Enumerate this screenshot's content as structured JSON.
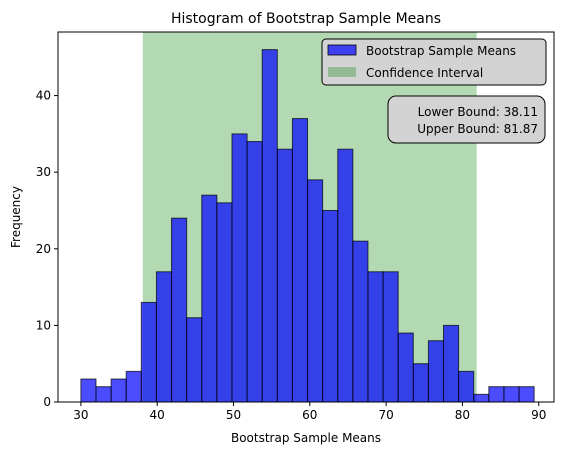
{
  "chart_data": {
    "type": "bar",
    "title": "Histogram of Bootstrap Sample Means",
    "xlabel": "Bootstrap Sample Means",
    "ylabel": "Frequency",
    "xlim": [
      27.0,
      92.0
    ],
    "ylim": [
      0,
      48.3
    ],
    "xticks": [
      30,
      40,
      50,
      60,
      70,
      80,
      90
    ],
    "yticks": [
      0,
      10,
      20,
      30,
      40
    ],
    "bin_start": 30.0,
    "bin_width": 1.98,
    "series": [
      {
        "name": "Bootstrap Sample Means",
        "color": "#0000ff",
        "values": [
          3,
          2,
          3,
          4,
          13,
          17,
          24,
          11,
          27,
          26,
          35,
          34,
          46,
          33,
          37,
          29,
          25,
          33,
          21,
          17,
          17,
          9,
          5,
          8,
          10,
          4,
          1,
          2,
          2,
          2
        ]
      }
    ],
    "confidence_interval": {
      "name": "Confidence Interval",
      "color": "#008000",
      "lower": 38.11,
      "upper": 81.87
    },
    "annotation": {
      "line1": "Lower Bound: 38.11",
      "line2": "Upper Bound: 81.87"
    },
    "legend": {
      "placement": "top-right",
      "entries": [
        "Bootstrap Sample Means",
        "Confidence Interval"
      ]
    },
    "grid": false
  }
}
